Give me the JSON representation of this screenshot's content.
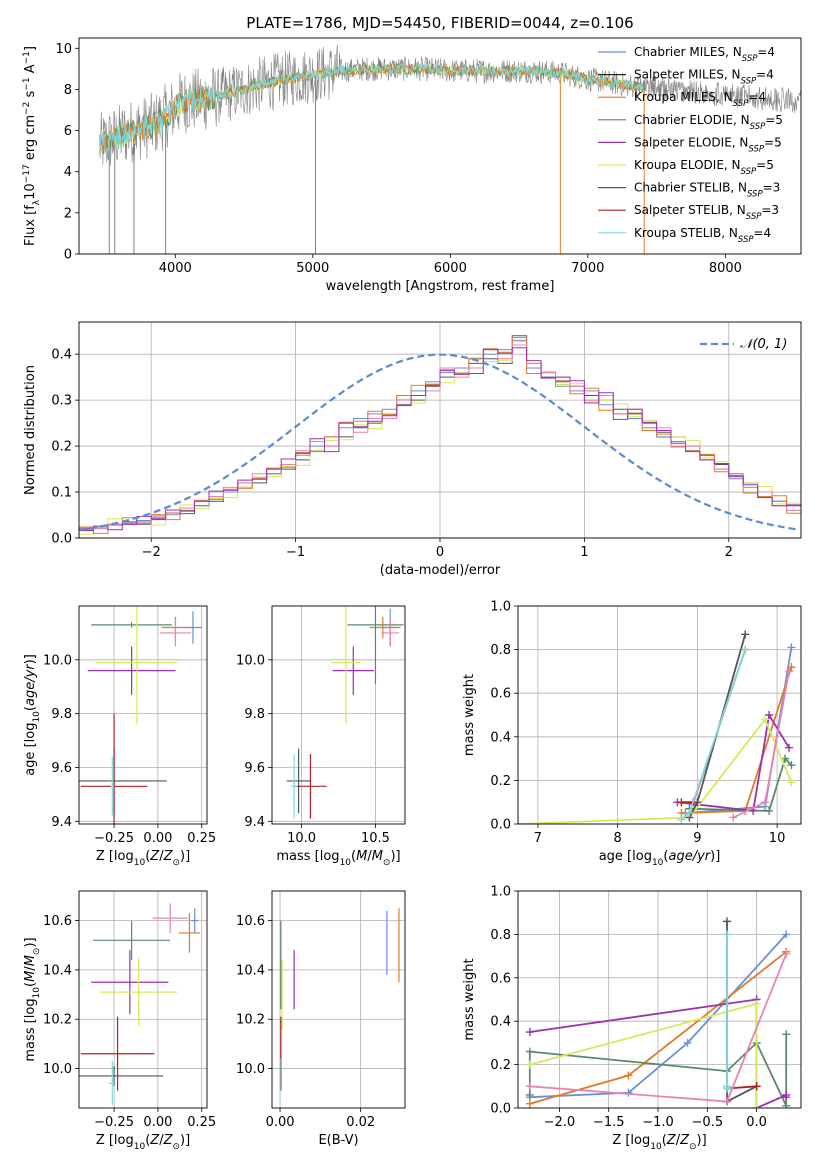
{
  "title": "PLATE=1786, MJD=54450, FIBERID=0044, z=0.106",
  "legend_labels": [
    {
      "name": "Chabrier MILES, N",
      "sub": "SSP",
      "tail": "=4"
    },
    {
      "name": "Salpeter MILES, N",
      "sub": "SSP",
      "tail": "=4"
    },
    {
      "name": "Kroupa MILES, N",
      "sub": "SSP",
      "tail": "=4"
    },
    {
      "name": "Chabrier ELODIE, N",
      "sub": "SSP",
      "tail": "=5"
    },
    {
      "name": "Salpeter ELODIE, N",
      "sub": "SSP",
      "tail": "=5"
    },
    {
      "name": "Kroupa ELODIE, N",
      "sub": "SSP",
      "tail": "=5"
    },
    {
      "name": "Chabrier STELIB, N",
      "sub": "SSP",
      "tail": "=3"
    },
    {
      "name": "Salpeter STELIB, N",
      "sub": "SSP",
      "tail": "=3"
    },
    {
      "name": "Kroupa STELIB, N",
      "sub": "SSP",
      "tail": "=4"
    }
  ],
  "colors": {
    "Chabrier MILES": "#6a8fd6",
    "Salpeter MILES": "#1f1f1f",
    "Kroupa MILES": "#e07b2a",
    "Chabrier ELODIE": "#5a8a6a",
    "Salpeter ELODIE": "#9b30b0",
    "Kroupa ELODIE": "#d4ea5a",
    "Chabrier STELIB": "#555555",
    "Salpeter STELIB": "#b22222",
    "Kroupa STELIB": "#7fd8e0",
    "Kroupa STELIB pink": "#e882b4",
    "data": "#808080",
    "normal": "#5b8bd4",
    "grid": "#b0b0b0"
  },
  "chart_data": [
    {
      "type": "line",
      "panel": "spectrum",
      "xlabel": "wavelength [Angstrom, rest frame]",
      "ylabel_parts": {
        "pre": "Flux [f",
        "lam": "λ",
        "mid": "10",
        "exp1": "−17",
        "unit": " erg cm",
        "exp2": "−2",
        "s": " s",
        "exp3": "−1",
        "A": " A",
        "exp4": "−1",
        "close": "]"
      },
      "xlim": [
        3300,
        8550
      ],
      "ylim": [
        0,
        10.5
      ],
      "xticks": [
        4000,
        5000,
        6000,
        7000,
        8000
      ],
      "yticks": [
        0,
        2,
        4,
        6,
        8,
        10
      ],
      "continuum": {
        "x": [
          3450,
          3550,
          3650,
          3750,
          3850,
          3950,
          4050,
          4200,
          4400,
          4600,
          4800,
          5000,
          5200,
          5400,
          5600,
          5800,
          6000,
          6200,
          6400,
          6600,
          6800,
          7000,
          7200,
          7400
        ],
        "y": [
          5.3,
          5.6,
          5.9,
          6.1,
          6.3,
          6.8,
          7.4,
          7.5,
          7.8,
          8.2,
          8.5,
          8.7,
          8.9,
          9.0,
          9.0,
          9.0,
          8.9,
          8.9,
          8.9,
          8.9,
          8.8,
          8.5,
          8.3,
          8.1
        ]
      }
    },
    {
      "type": "step",
      "panel": "residuals",
      "xlabel": "(data-model)/error",
      "ylabel": "Normed distribution",
      "legend": "𝒩(0, 1)",
      "xlim": [
        -2.5,
        2.5
      ],
      "ylim": [
        0,
        0.47
      ],
      "xticks": [
        -2,
        -1,
        0,
        1,
        2
      ],
      "yticks": [
        0.0,
        0.1,
        0.2,
        0.3,
        0.4
      ],
      "bin_width": 0.1,
      "bin_start": -2.5,
      "series": [
        {
          "values": [
            0.02,
            0.025,
            0.03,
            0.035,
            0.03,
            0.04,
            0.05,
            0.06,
            0.07,
            0.08,
            0.1,
            0.11,
            0.12,
            0.14,
            0.15,
            0.17,
            0.19,
            0.2,
            0.22,
            0.24,
            0.25,
            0.27,
            0.29,
            0.3,
            0.33,
            0.35,
            0.36,
            0.38,
            0.39,
            0.38,
            0.44,
            0.38,
            0.35,
            0.34,
            0.33,
            0.31,
            0.3,
            0.28,
            0.27,
            0.25,
            0.23,
            0.22,
            0.2,
            0.18,
            0.16,
            0.14,
            0.12,
            0.1,
            0.08,
            0.07
          ]
        },
        {
          "values": [
            0.018,
            0.022,
            0.028,
            0.032,
            0.038,
            0.045,
            0.052,
            0.058,
            0.07,
            0.09,
            0.1,
            0.12,
            0.13,
            0.14,
            0.16,
            0.18,
            0.2,
            0.22,
            0.24,
            0.26,
            0.27,
            0.28,
            0.31,
            0.32,
            0.34,
            0.36,
            0.37,
            0.39,
            0.4,
            0.41,
            0.43,
            0.37,
            0.36,
            0.33,
            0.32,
            0.32,
            0.29,
            0.27,
            0.26,
            0.24,
            0.22,
            0.21,
            0.19,
            0.17,
            0.15,
            0.13,
            0.11,
            0.09,
            0.08,
            0.06
          ]
        },
        {
          "values": [
            0.022,
            0.02,
            0.03,
            0.03,
            0.035,
            0.048,
            0.055,
            0.065,
            0.08,
            0.09,
            0.11,
            0.12,
            0.14,
            0.15,
            0.16,
            0.19,
            0.21,
            0.2,
            0.25,
            0.23,
            0.26,
            0.26,
            0.3,
            0.31,
            0.32,
            0.37,
            0.35,
            0.37,
            0.41,
            0.39,
            0.42,
            0.38,
            0.36,
            0.35,
            0.33,
            0.3,
            0.31,
            0.27,
            0.28,
            0.24,
            0.24,
            0.2,
            0.2,
            0.17,
            0.15,
            0.14,
            0.11,
            0.1,
            0.07,
            0.06
          ]
        }
      ],
      "normal": {
        "mu": 0,
        "sigma": 1
      }
    },
    {
      "type": "scatter",
      "panel": "age-Z",
      "xlabel": "Z [log10(Z/Z☉)]",
      "ylabel": "age [log10(age/yr)]",
      "xlim": [
        -0.45,
        0.28
      ],
      "ylim": [
        9.39,
        10.2
      ],
      "xticks": [
        -0.25,
        0.0,
        0.25
      ],
      "yticks": [
        9.4,
        9.6,
        9.8,
        10.0
      ],
      "points": [
        {
          "c": "Chabrier MILES",
          "x": 0.2,
          "y": 10.12,
          "xe": 0.05,
          "ye": 0.06
        },
        {
          "c": "Kroupa MILES",
          "x": 0.1,
          "y": 10.12,
          "xe": 0.08,
          "ye": 0.04
        },
        {
          "c": "Chabrier ELODIE",
          "x": -0.15,
          "y": 10.13,
          "xe": 0.23,
          "ye": 0.01
        },
        {
          "c": "Salpeter ELODIE",
          "x": -0.15,
          "y": 9.96,
          "xe": 0.25,
          "ye": 0.09
        },
        {
          "c": "Kroupa ELODIE",
          "x": -0.12,
          "y": 9.99,
          "xe": 0.23,
          "ye": 0.23
        },
        {
          "c": "Chabrier STELIB",
          "x": -0.25,
          "y": 9.55,
          "xe": 0.3,
          "ye": 0.12
        },
        {
          "c": "Salpeter STELIB",
          "x": -0.25,
          "y": 9.53,
          "xe": 0.19,
          "ye": 0.27
        },
        {
          "c": "Kroupa STELIB",
          "x": -0.26,
          "y": 9.53,
          "xe": 0.01,
          "ye": 0.11
        },
        {
          "c": "Kroupa STELIB pink",
          "x": 0.1,
          "y": 10.1,
          "xe": 0.09,
          "ye": 0.05
        }
      ]
    },
    {
      "type": "scatter",
      "panel": "age-mass",
      "xlabel": "mass [log10(M/M☉)]",
      "ylabel": "",
      "xlim": [
        9.8,
        10.7
      ],
      "ylim": [
        9.39,
        10.2
      ],
      "xticks": [
        10.0,
        10.5
      ],
      "yticks": [
        9.4,
        9.6,
        9.8,
        10.0
      ],
      "points": [
        {
          "c": "Chabrier MILES",
          "x": 10.6,
          "y": 10.12,
          "xe": 0.07,
          "ye": 0.07
        },
        {
          "c": "Kroupa MILES",
          "x": 10.55,
          "y": 10.12,
          "xe": 0.09,
          "ye": 0.04
        },
        {
          "c": "Chabrier ELODIE",
          "x": 10.5,
          "y": 10.13,
          "xe": 0.19,
          "ye": 0.22
        },
        {
          "c": "Salpeter ELODIE",
          "x": 10.35,
          "y": 9.96,
          "xe": 0.14,
          "ye": 0.09
        },
        {
          "c": "Kroupa ELODIE",
          "x": 10.3,
          "y": 9.99,
          "xe": 0.1,
          "ye": 0.23
        },
        {
          "c": "Chabrier STELIB",
          "x": 9.98,
          "y": 9.55,
          "xe": 0.08,
          "ye": 0.12
        },
        {
          "c": "Salpeter STELIB",
          "x": 10.06,
          "y": 9.53,
          "xe": 0.11,
          "ye": 0.12
        },
        {
          "c": "Kroupa STELIB",
          "x": 9.95,
          "y": 9.53,
          "xe": 0.02,
          "ye": 0.12
        },
        {
          "c": "Kroupa STELIB pink",
          "x": 10.6,
          "y": 10.1,
          "xe": 0.06,
          "ye": 0.05
        }
      ]
    },
    {
      "type": "line",
      "panel": "mw-age",
      "xlabel": "age [log10(age/yr)]",
      "ylabel": "mass weight",
      "xlim": [
        6.75,
        10.3
      ],
      "ylim": [
        0,
        1
      ],
      "xticks": [
        7,
        8,
        9,
        10
      ],
      "yticks": [
        0.0,
        0.2,
        0.4,
        0.6,
        0.8,
        1.0
      ],
      "series": [
        {
          "c": "Chabrier MILES",
          "x": [
            8.85,
            9.85,
            10.18
          ],
          "y": [
            0.05,
            0.08,
            0.81
          ]
        },
        {
          "c": "Kroupa MILES",
          "x": [
            8.8,
            9.6,
            10.18
          ],
          "y": [
            0.05,
            0.06,
            0.72
          ]
        },
        {
          "c": "Chabrier ELODIE",
          "x": [
            8.9,
            9.9,
            10.1,
            10.18
          ],
          "y": [
            0.07,
            0.06,
            0.3,
            0.27
          ]
        },
        {
          "c": "Salpeter ELODIE",
          "x": [
            8.75,
            9.7,
            9.9,
            10.15
          ],
          "y": [
            0.1,
            0.06,
            0.5,
            0.35
          ]
        },
        {
          "c": "Kroupa ELODIE",
          "x": [
            6.75,
            8.9,
            9.85,
            10.18
          ],
          "y": [
            0.0,
            0.03,
            0.48,
            0.19
          ]
        },
        {
          "c": "Chabrier STELIB",
          "x": [
            8.9,
            9.0,
            9.6
          ],
          "y": [
            0.03,
            0.1,
            0.87
          ]
        },
        {
          "c": "Salpeter STELIB",
          "x": [
            8.8,
            8.95,
            9.6
          ],
          "y": [
            0.1,
            0.1,
            0.8
          ]
        },
        {
          "c": "Kroupa STELIB",
          "x": [
            8.8,
            8.9,
            9.6
          ],
          "y": [
            0.02,
            0.05,
            0.8
          ]
        },
        {
          "c": "Kroupa STELIB pink",
          "x": [
            9.45,
            9.85,
            10.15
          ],
          "y": [
            0.03,
            0.1,
            0.7
          ]
        }
      ]
    },
    {
      "type": "scatter",
      "panel": "mass-Z",
      "xlabel": "Z [log10(Z/Z☉)]",
      "ylabel": "mass [log10(M/M☉)]",
      "xlim": [
        -0.45,
        0.28
      ],
      "ylim": [
        9.84,
        10.72
      ],
      "xticks": [
        -0.25,
        0.0,
        0.25
      ],
      "yticks": [
        10.0,
        10.2,
        10.4,
        10.6
      ],
      "points": [
        {
          "c": "Chabrier MILES",
          "x": 0.21,
          "y": 10.6,
          "xe": 0.02,
          "ye": 0.05
        },
        {
          "c": "Kroupa MILES",
          "x": 0.18,
          "y": 10.55,
          "xe": 0.06,
          "ye": 0.08
        },
        {
          "c": "Chabrier ELODIE",
          "x": -0.15,
          "y": 10.52,
          "xe": 0.22,
          "ye": 0.08
        },
        {
          "c": "Salpeter ELODIE",
          "x": -0.16,
          "y": 10.35,
          "xe": 0.22,
          "ye": 0.13
        },
        {
          "c": "Kroupa ELODIE",
          "x": -0.11,
          "y": 10.31,
          "xe": 0.22,
          "ye": 0.14
        },
        {
          "c": "Chabrier STELIB",
          "x": -0.25,
          "y": 9.97,
          "xe": 0.28,
          "ye": 0.04
        },
        {
          "c": "Salpeter STELIB",
          "x": -0.23,
          "y": 10.06,
          "xe": 0.21,
          "ye": 0.15
        },
        {
          "c": "Kroupa STELIB",
          "x": -0.26,
          "y": 9.94,
          "xe": 0.02,
          "ye": 0.09
        },
        {
          "c": "Kroupa STELIB pink",
          "x": 0.07,
          "y": 10.61,
          "xe": 0.1,
          "ye": 0.06
        }
      ]
    },
    {
      "type": "scatter",
      "panel": "mass-ebv",
      "xlabel": "E(B-V)",
      "ylabel": "",
      "xlim": [
        -0.002,
        0.031
      ],
      "ylim": [
        9.84,
        10.72
      ],
      "xticks": [
        0.0,
        0.02
      ],
      "xticklabels": [
        "0.00",
        "0.02"
      ],
      "yticks": [
        10.0,
        10.2,
        10.4,
        10.6
      ],
      "points": [
        {
          "c": "Chabrier MILES",
          "x": 0.0265,
          "y": 10.51,
          "xe": 0.0,
          "ye": 0.13
        },
        {
          "c": "Kroupa MILES",
          "x": 0.0295,
          "y": 10.5,
          "xe": 0.0,
          "ye": 0.15
        },
        {
          "c": "Chabrier ELODIE",
          "x": 0.0002,
          "y": 10.42,
          "xe": 0.0,
          "ye": 0.18
        },
        {
          "c": "Salpeter ELODIE",
          "x": 0.0035,
          "y": 10.36,
          "xe": 0.0,
          "ye": 0.12
        },
        {
          "c": "Kroupa ELODIE",
          "x": 0.0005,
          "y": 10.3,
          "xe": 0.0,
          "ye": 0.14
        },
        {
          "c": "Chabrier STELIB",
          "x": 0.0,
          "y": 9.97,
          "xe": 0.0,
          "ye": 0.05
        },
        {
          "c": "Salpeter STELIB",
          "x": 0.0002,
          "y": 10.06,
          "xe": 0.0,
          "ye": 0.15
        },
        {
          "c": "Kroupa STELIB",
          "x": 0.0,
          "y": 9.95,
          "xe": 0.0,
          "ye": 0.09
        }
      ]
    },
    {
      "type": "line",
      "panel": "mw-Z",
      "xlabel": "Z [log10(Z/Z☉)]",
      "ylabel": "mass weight",
      "xlim": [
        -2.42,
        0.45
      ],
      "ylim": [
        0,
        1
      ],
      "xticks": [
        -2.0,
        -1.5,
        -1.0,
        -0.5,
        0.0
      ],
      "yticks": [
        0.0,
        0.2,
        0.4,
        0.6,
        0.8,
        1.0
      ],
      "series": [
        {
          "c": "Chabrier MILES",
          "x": [
            -2.3,
            -1.3,
            -0.7,
            0.3
          ],
          "y": [
            0.05,
            0.07,
            0.3,
            0.8
          ]
        },
        {
          "c": "Kroupa MILES",
          "x": [
            -2.3,
            -1.3,
            0.3
          ],
          "y": [
            0.02,
            0.15,
            0.72
          ]
        },
        {
          "c": "Chabrier ELODIE",
          "x": [
            -2.3,
            -2.3,
            -0.3,
            0.0,
            0.3,
            0.3
          ],
          "y": [
            0.06,
            0.26,
            0.17,
            0.3,
            0.01,
            0.34
          ]
        },
        {
          "c": "Salpeter ELODIE",
          "x": [
            -2.3,
            0.0,
            0.0,
            0.3,
            0.3
          ],
          "y": [
            0.35,
            0.5,
            0.0,
            0.06,
            0.05
          ]
        },
        {
          "c": "Kroupa ELODIE",
          "x": [
            -2.3,
            0.0,
            0.0
          ],
          "y": [
            0.2,
            0.48,
            0.0
          ]
        },
        {
          "c": "Chabrier STELIB",
          "x": [
            -0.3,
            -0.3,
            -0.3,
            0.0
          ],
          "y": [
            0.03,
            0.86,
            0.03,
            0.1
          ]
        },
        {
          "c": "Salpeter STELIB",
          "x": [
            -0.3,
            0.0
          ],
          "y": [
            0.09,
            0.1
          ]
        },
        {
          "c": "Kroupa STELIB",
          "x": [
            -0.3,
            -0.3,
            -0.3
          ],
          "y": [
            0.09,
            0.8,
            0.1
          ]
        },
        {
          "c": "Kroupa STELIB pink",
          "x": [
            -2.3,
            -0.3,
            0.3
          ],
          "y": [
            0.1,
            0.03,
            0.71
          ]
        }
      ]
    }
  ]
}
